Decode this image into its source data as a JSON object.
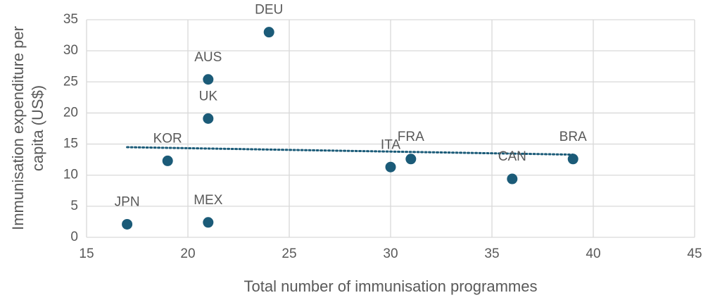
{
  "chart_data": {
    "type": "scatter",
    "xlabel": "Total number of immunisation programmes",
    "ylabel": [
      "Immunisation expenditure per",
      "capita (US$)"
    ],
    "xlim": [
      15,
      45
    ],
    "xticks": [
      15,
      20,
      25,
      30,
      35,
      40,
      45
    ],
    "ylim": [
      0,
      35
    ],
    "yticks": [
      0,
      5,
      10,
      15,
      20,
      25,
      30,
      35
    ],
    "grid": true,
    "color": "#1b5b78",
    "labels": [
      "JPN",
      "KOR",
      "MEX",
      "UK",
      "AUS",
      "DEU",
      "ITA",
      "FRA",
      "CAN",
      "BRA"
    ],
    "x": [
      17,
      19,
      21,
      21,
      21,
      24,
      30,
      31,
      36,
      39
    ],
    "y": [
      2.1,
      12.3,
      2.4,
      19.1,
      25.4,
      33,
      11.3,
      12.6,
      9.4,
      12.6
    ],
    "trendline": {
      "x": [
        17,
        39
      ],
      "y": [
        14.5,
        13.3
      ],
      "color": "#1b5b78"
    }
  }
}
